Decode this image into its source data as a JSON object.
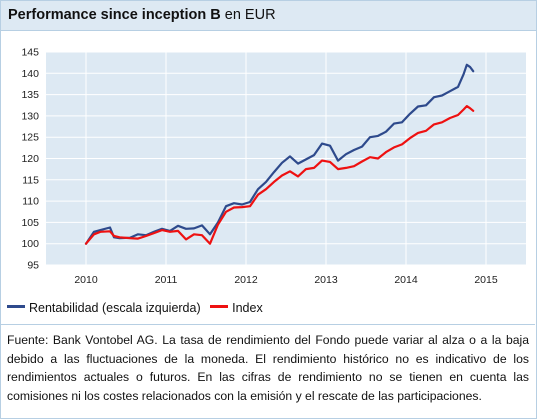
{
  "title": {
    "main": "Performance since inception B",
    "sub": "en EUR"
  },
  "chart_data": {
    "type": "line",
    "ylim": [
      95,
      145
    ],
    "yticks": [
      95,
      100,
      105,
      110,
      115,
      120,
      125,
      130,
      135,
      140,
      145
    ],
    "xlim": [
      2009.5,
      2015.5
    ],
    "xticks": [
      "2010",
      "2011",
      "2012",
      "2013",
      "2014",
      "2015"
    ],
    "grid": true,
    "legend_placement": "bottom-left",
    "series": [
      {
        "name": "Rentabilidad (escala izquierda)",
        "color": "#2e4a8c",
        "x": [
          2010.0,
          2010.1,
          2010.18,
          2010.3,
          2010.35,
          2010.42,
          2010.55,
          2010.65,
          2010.75,
          2010.85,
          2010.95,
          2011.05,
          2011.15,
          2011.25,
          2011.35,
          2011.45,
          2011.55,
          2011.65,
          2011.75,
          2011.85,
          2011.95,
          2012.05,
          2012.15,
          2012.25,
          2012.35,
          2012.45,
          2012.55,
          2012.65,
          2012.75,
          2012.85,
          2012.95,
          2013.05,
          2013.15,
          2013.25,
          2013.35,
          2013.45,
          2013.55,
          2013.65,
          2013.75,
          2013.85,
          2013.95,
          2014.05,
          2014.15,
          2014.25,
          2014.35,
          2014.45,
          2014.55,
          2014.65,
          2014.72,
          2014.76,
          2014.8,
          2014.84
        ],
        "y": [
          100.0,
          102.8,
          103.2,
          103.8,
          101.5,
          101.3,
          101.4,
          102.2,
          102.0,
          102.8,
          103.5,
          103.0,
          104.2,
          103.5,
          103.6,
          104.3,
          102.2,
          105.0,
          108.8,
          109.5,
          109.2,
          109.8,
          112.8,
          114.5,
          116.8,
          119.0,
          120.5,
          118.8,
          119.8,
          120.8,
          123.5,
          123.0,
          119.5,
          121.0,
          122.0,
          122.8,
          125.0,
          125.3,
          126.3,
          128.2,
          128.5,
          130.5,
          132.2,
          132.5,
          134.4,
          134.8,
          135.8,
          136.8,
          139.8,
          142.0,
          141.5,
          140.5
        ]
      },
      {
        "name": "Index",
        "color": "#ee1111",
        "x": [
          2010.0,
          2010.1,
          2010.18,
          2010.3,
          2010.35,
          2010.42,
          2010.55,
          2010.65,
          2010.75,
          2010.85,
          2010.95,
          2011.05,
          2011.15,
          2011.25,
          2011.35,
          2011.45,
          2011.55,
          2011.65,
          2011.75,
          2011.85,
          2011.95,
          2012.05,
          2012.15,
          2012.25,
          2012.35,
          2012.45,
          2012.55,
          2012.65,
          2012.75,
          2012.85,
          2012.95,
          2013.05,
          2013.15,
          2013.25,
          2013.35,
          2013.45,
          2013.55,
          2013.65,
          2013.75,
          2013.85,
          2013.95,
          2014.05,
          2014.15,
          2014.25,
          2014.35,
          2014.45,
          2014.55,
          2014.65,
          2014.72,
          2014.76,
          2014.8,
          2014.84
        ],
        "y": [
          100.0,
          102.2,
          102.8,
          102.9,
          101.8,
          101.5,
          101.3,
          101.2,
          101.8,
          102.5,
          103.2,
          102.8,
          103.0,
          101.0,
          102.2,
          102.0,
          100.0,
          104.5,
          107.5,
          108.5,
          108.6,
          108.8,
          111.5,
          112.8,
          114.5,
          116.0,
          117.0,
          115.8,
          117.5,
          117.8,
          119.5,
          119.2,
          117.5,
          117.8,
          118.2,
          119.3,
          120.3,
          120.0,
          121.5,
          122.6,
          123.3,
          124.8,
          126.0,
          126.5,
          128.0,
          128.5,
          129.5,
          130.2,
          131.5,
          132.3,
          131.8,
          131.2
        ]
      }
    ]
  },
  "legend": [
    {
      "label": "Rentabilidad (escala izquierda)",
      "color": "#2e4a8c"
    },
    {
      "label": "Index",
      "color": "#ee1111"
    }
  ],
  "footnote": "Fuente: Bank Vontobel AG. La tasa de rendimiento del Fondo puede variar al alza o a la baja debido a las fluctuaciones de la moneda. El rendimiento histórico no es indicativo de los rendimientos actuales o futuros. En las cifras de rendimiento no se tienen en cuenta las comisiones ni los costes relacionados con la emisión y el rescate de las participaciones."
}
